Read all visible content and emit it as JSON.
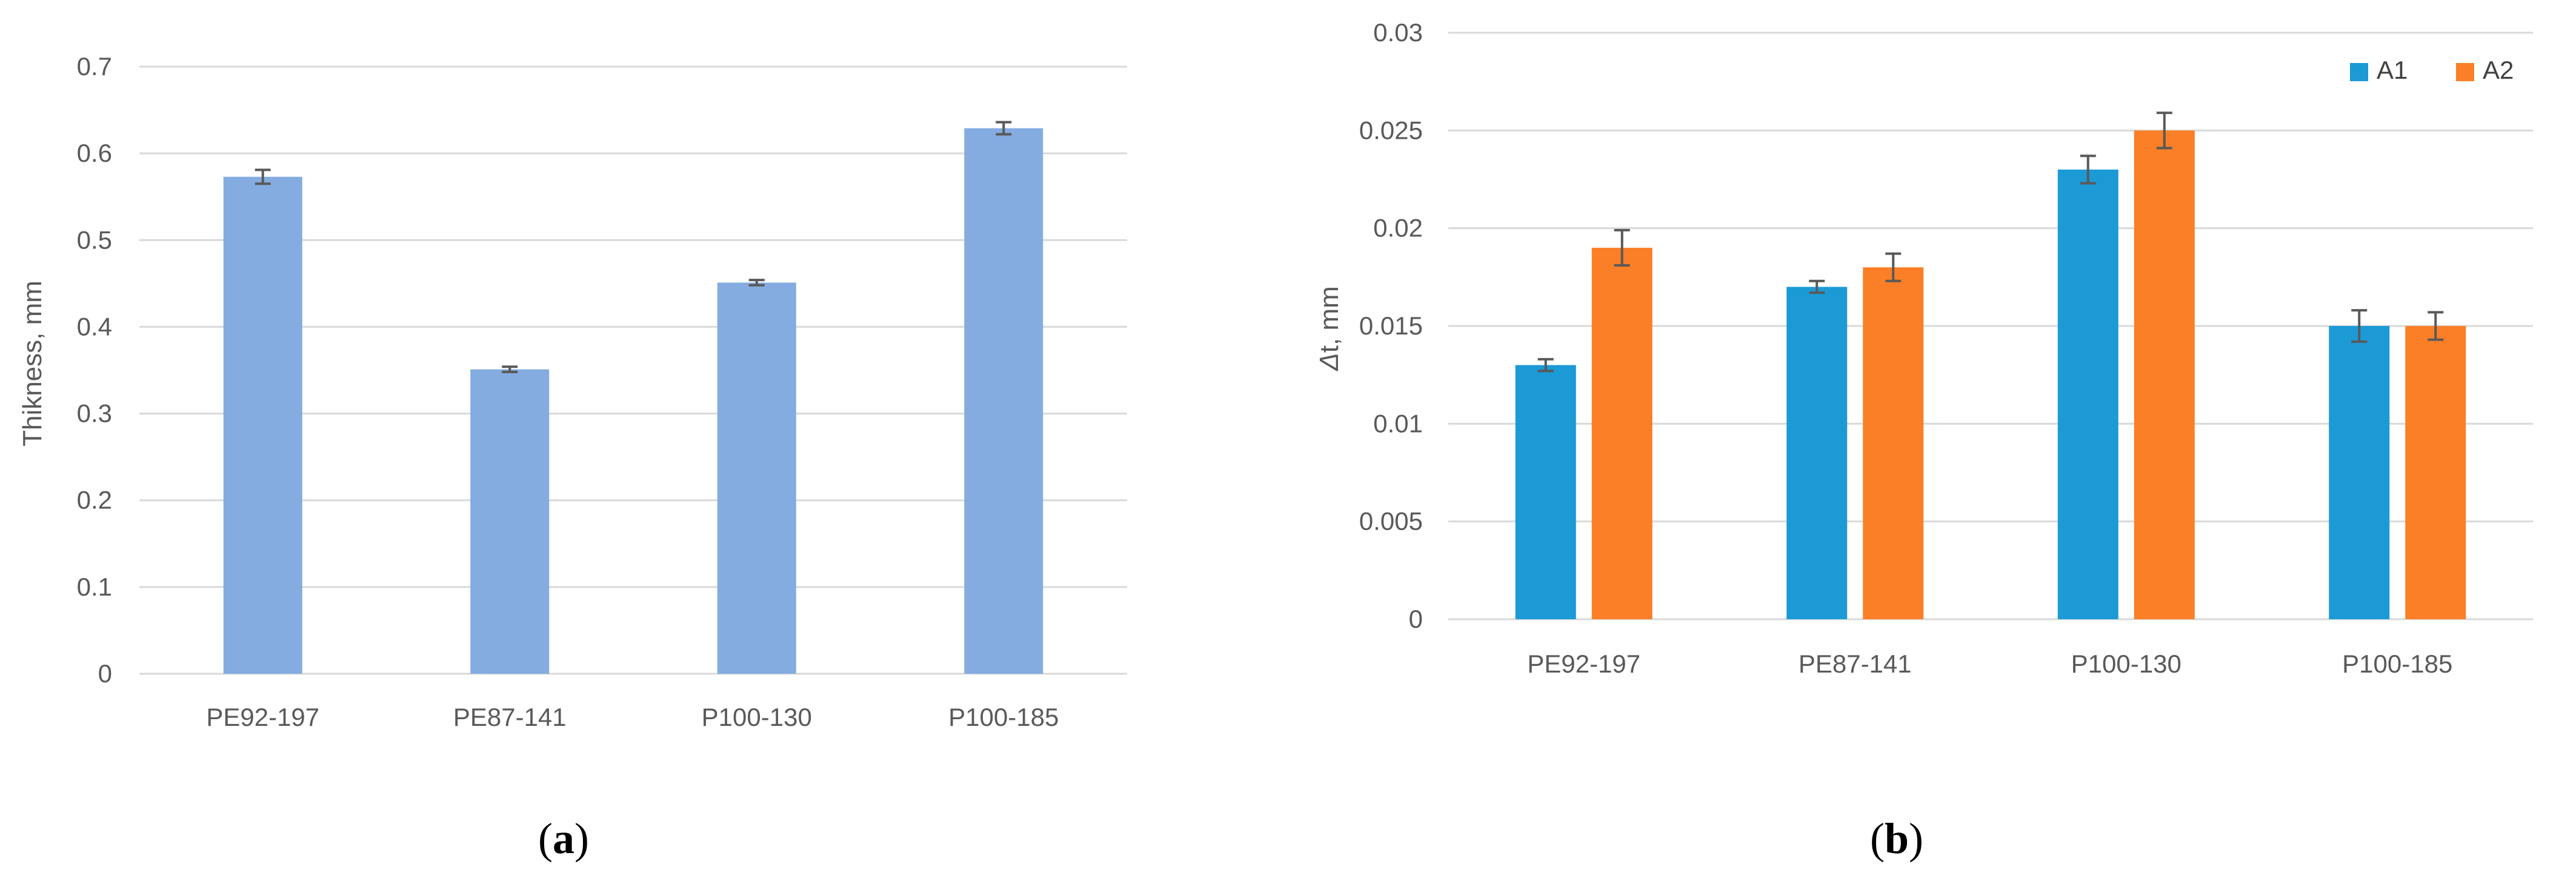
{
  "chart_data": [
    {
      "type": "bar",
      "panel_label": "a",
      "title": "",
      "xlabel": "",
      "ylabel": "Thikness, mm",
      "ylim": [
        0,
        0.7
      ],
      "yticks": [
        "0",
        "0.1",
        "0.2",
        "0.3",
        "0.4",
        "0.5",
        "0.6",
        "0.7"
      ],
      "categories": [
        "PE92-197",
        "PE87-141",
        "P100-130",
        "P100-185"
      ],
      "series": [
        {
          "name": "Thikness",
          "color": "#84ACE0",
          "values": [
            0.573,
            0.351,
            0.451,
            0.629
          ],
          "errors": [
            0.008,
            0.003,
            0.003,
            0.007
          ]
        }
      ],
      "grid": true,
      "legend": "none"
    },
    {
      "type": "bar",
      "panel_label": "b",
      "title": "",
      "xlabel": "",
      "ylabel_italic": "Δ",
      "ylabel_rest": "t, mm",
      "ylim": [
        0,
        0.03
      ],
      "yticks": [
        "0",
        "0.005",
        "0.01",
        "0.015",
        "0.02",
        "0.025",
        "0.03"
      ],
      "categories": [
        "PE92-197",
        "PE87-141",
        "P100-130",
        "P100-185"
      ],
      "series": [
        {
          "name": "A1",
          "color": "#1B9AD6",
          "values": [
            0.013,
            0.017,
            0.023,
            0.015
          ],
          "errors": [
            0.0003,
            0.0003,
            0.0007,
            0.0008
          ]
        },
        {
          "name": "A2",
          "color": "#FA7F26",
          "values": [
            0.019,
            0.018,
            0.025,
            0.015
          ],
          "errors": [
            0.0009,
            0.0007,
            0.0009,
            0.0007
          ]
        }
      ],
      "grid": true,
      "legend": "top-right"
    }
  ]
}
